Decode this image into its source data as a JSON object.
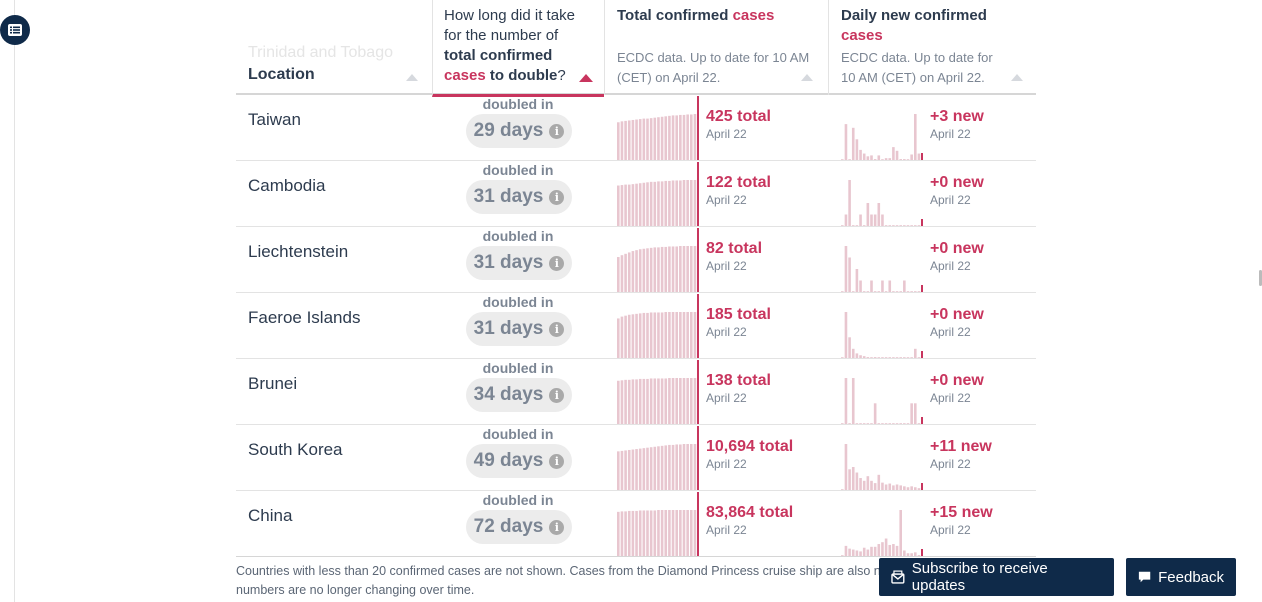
{
  "header": {
    "faded_location": "Trinidad and Tobago",
    "location": "Location",
    "doubling": {
      "part1": "How long did it take for the number of ",
      "part2": "total confirmed",
      "part3": "cases",
      "part4": "to double",
      "part5": "?"
    },
    "total": {
      "title": "Total confirmed",
      "title_red": "cases",
      "sub": "ECDC data. Up to date for 10 AM (CET) on April 22."
    },
    "daily": {
      "title": "Daily new confirmed",
      "title_red": "cases",
      "sub": "ECDC data. Up to date for 10 AM (CET) on April 22."
    }
  },
  "colors": {
    "accent": "#c8355e",
    "bar": "#e8c6cf",
    "navy": "#0f2a49"
  },
  "rows": [
    {
      "location": "Taiwan",
      "doubled_label": "doubled in",
      "doubling": "29 days",
      "total": "425 total",
      "total_date": "April 22",
      "new": "+3 new",
      "new_date": "April 22",
      "total_spark": [
        0.82,
        0.84,
        0.85,
        0.86,
        0.87,
        0.88,
        0.89,
        0.9,
        0.9,
        0.91,
        0.92,
        0.93,
        0.94,
        0.95,
        0.96,
        0.97,
        0.97,
        0.98,
        0.98,
        0.99,
        0.99,
        1.0
      ],
      "daily_spark": [
        0,
        0.78,
        0,
        0.7,
        0.45,
        0.22,
        0.14,
        0.08,
        0.1,
        0.02,
        0.1,
        0,
        0.04,
        0.04,
        0.28,
        0.2,
        0.02,
        0.02,
        0,
        0.12,
        1.0,
        0.14
      ]
    },
    {
      "location": "Cambodia",
      "doubled_label": "doubled in",
      "doubling": "31 days",
      "total": "122 total",
      "total_date": "April 22",
      "new": "+0 new",
      "new_date": "April 22",
      "total_spark": [
        0.88,
        0.89,
        0.9,
        0.9,
        0.91,
        0.92,
        0.93,
        0.94,
        0.95,
        0.96,
        0.96,
        0.97,
        0.97,
        0.98,
        0.98,
        0.99,
        0.99,
        0.99,
        1.0,
        1.0,
        1.0,
        1.0
      ],
      "daily_spark": [
        0,
        0.25,
        1.0,
        0,
        0,
        0.25,
        0,
        0.5,
        0.25,
        0.25,
        0.5,
        0.25,
        0,
        0,
        0,
        0,
        0,
        0,
        0,
        0,
        0,
        0
      ]
    },
    {
      "location": "Liechtenstein",
      "doubled_label": "doubled in",
      "doubling": "31 days",
      "total": "82 total",
      "total_date": "April 22",
      "new": "+0 new",
      "new_date": "April 22",
      "total_spark": [
        0.76,
        0.8,
        0.83,
        0.86,
        0.89,
        0.91,
        0.93,
        0.94,
        0.95,
        0.96,
        0.97,
        0.97,
        0.98,
        0.98,
        0.99,
        0.99,
        0.99,
        1.0,
        1.0,
        1.0,
        1.0,
        1.0
      ],
      "daily_spark": [
        0,
        1.0,
        0.75,
        0,
        0.5,
        0.25,
        0,
        0,
        0.25,
        0,
        0,
        0.25,
        0,
        0.25,
        0,
        0,
        0,
        0.25,
        0,
        0,
        0,
        0
      ]
    },
    {
      "location": "Faeroe Islands",
      "doubled_label": "doubled in",
      "doubling": "31 days",
      "total": "185 total",
      "total_date": "April 22",
      "new": "+0 new",
      "new_date": "April 22",
      "total_spark": [
        0.86,
        0.9,
        0.92,
        0.94,
        0.95,
        0.96,
        0.97,
        0.98,
        0.98,
        0.99,
        0.99,
        0.99,
        0.99,
        1.0,
        1.0,
        1.0,
        1.0,
        1.0,
        1.0,
        1.0,
        1.0,
        1.0
      ],
      "daily_spark": [
        0,
        1.0,
        0.45,
        0.2,
        0.1,
        0.06,
        0.04,
        0.02,
        0,
        0.02,
        0,
        0,
        0,
        0,
        0,
        0,
        0,
        0,
        0,
        0,
        0.2,
        0
      ]
    },
    {
      "location": "Brunei",
      "doubled_label": "doubled in",
      "doubling": "34 days",
      "total": "138 total",
      "total_date": "April 22",
      "new": "+0 new",
      "new_date": "April 22",
      "total_spark": [
        0.94,
        0.95,
        0.96,
        0.96,
        0.97,
        0.97,
        0.98,
        0.98,
        0.98,
        0.99,
        0.99,
        0.99,
        0.99,
        0.99,
        1.0,
        1.0,
        1.0,
        1.0,
        1.0,
        1.0,
        1.0,
        1.0
      ],
      "daily_spark": [
        0,
        1.0,
        0,
        1.0,
        0,
        0,
        0,
        0,
        0,
        0.45,
        0,
        0,
        0,
        0,
        0,
        0,
        0,
        0,
        0,
        0.45,
        0.45,
        0
      ]
    },
    {
      "location": "South Korea",
      "doubled_label": "doubled in",
      "doubling": "49 days",
      "total": "10,694 total",
      "total_date": "April 22",
      "new": "+11 new",
      "new_date": "April 22",
      "total_spark": [
        0.84,
        0.85,
        0.86,
        0.87,
        0.88,
        0.89,
        0.9,
        0.91,
        0.92,
        0.93,
        0.94,
        0.95,
        0.96,
        0.97,
        0.98,
        0.98,
        0.99,
        0.99,
        1.0,
        1.0,
        1.0,
        1.0
      ],
      "daily_spark": [
        0,
        1.0,
        0.45,
        0.5,
        0.38,
        0.26,
        0.2,
        0.3,
        0.2,
        0.15,
        0.33,
        0.16,
        0.12,
        0.14,
        0.1,
        0.12,
        0.1,
        0.08,
        0.06,
        0.08,
        0.06,
        0.04
      ]
    },
    {
      "location": "China",
      "doubled_label": "doubled in",
      "doubling": "72 days",
      "total": "83,864 total",
      "total_date": "April 22",
      "new": "+15 new",
      "new_date": "April 22",
      "total_spark": [
        0.96,
        0.97,
        0.97,
        0.98,
        0.98,
        0.98,
        0.99,
        0.99,
        0.99,
        0.99,
        0.99,
        1.0,
        1.0,
        1.0,
        1.0,
        1.0,
        1.0,
        1.0,
        1.0,
        1.0,
        1.0,
        1.0
      ],
      "daily_spark": [
        0,
        0.22,
        0.16,
        0.14,
        0.12,
        0.1,
        0.18,
        0.14,
        0.2,
        0.2,
        0.26,
        0.3,
        0.38,
        0.24,
        0.26,
        0.22,
        1.0,
        0.12,
        0.06,
        0.06,
        0.08,
        0.02
      ]
    }
  ],
  "footnote": "Countries with less than 20 confirmed cases are not shown. Cases from the Diamond Princess cruise ship are also n numbers are no longer changing over time.",
  "buttons": {
    "subscribe": "Subscribe to receive updates",
    "feedback": "Feedback"
  }
}
